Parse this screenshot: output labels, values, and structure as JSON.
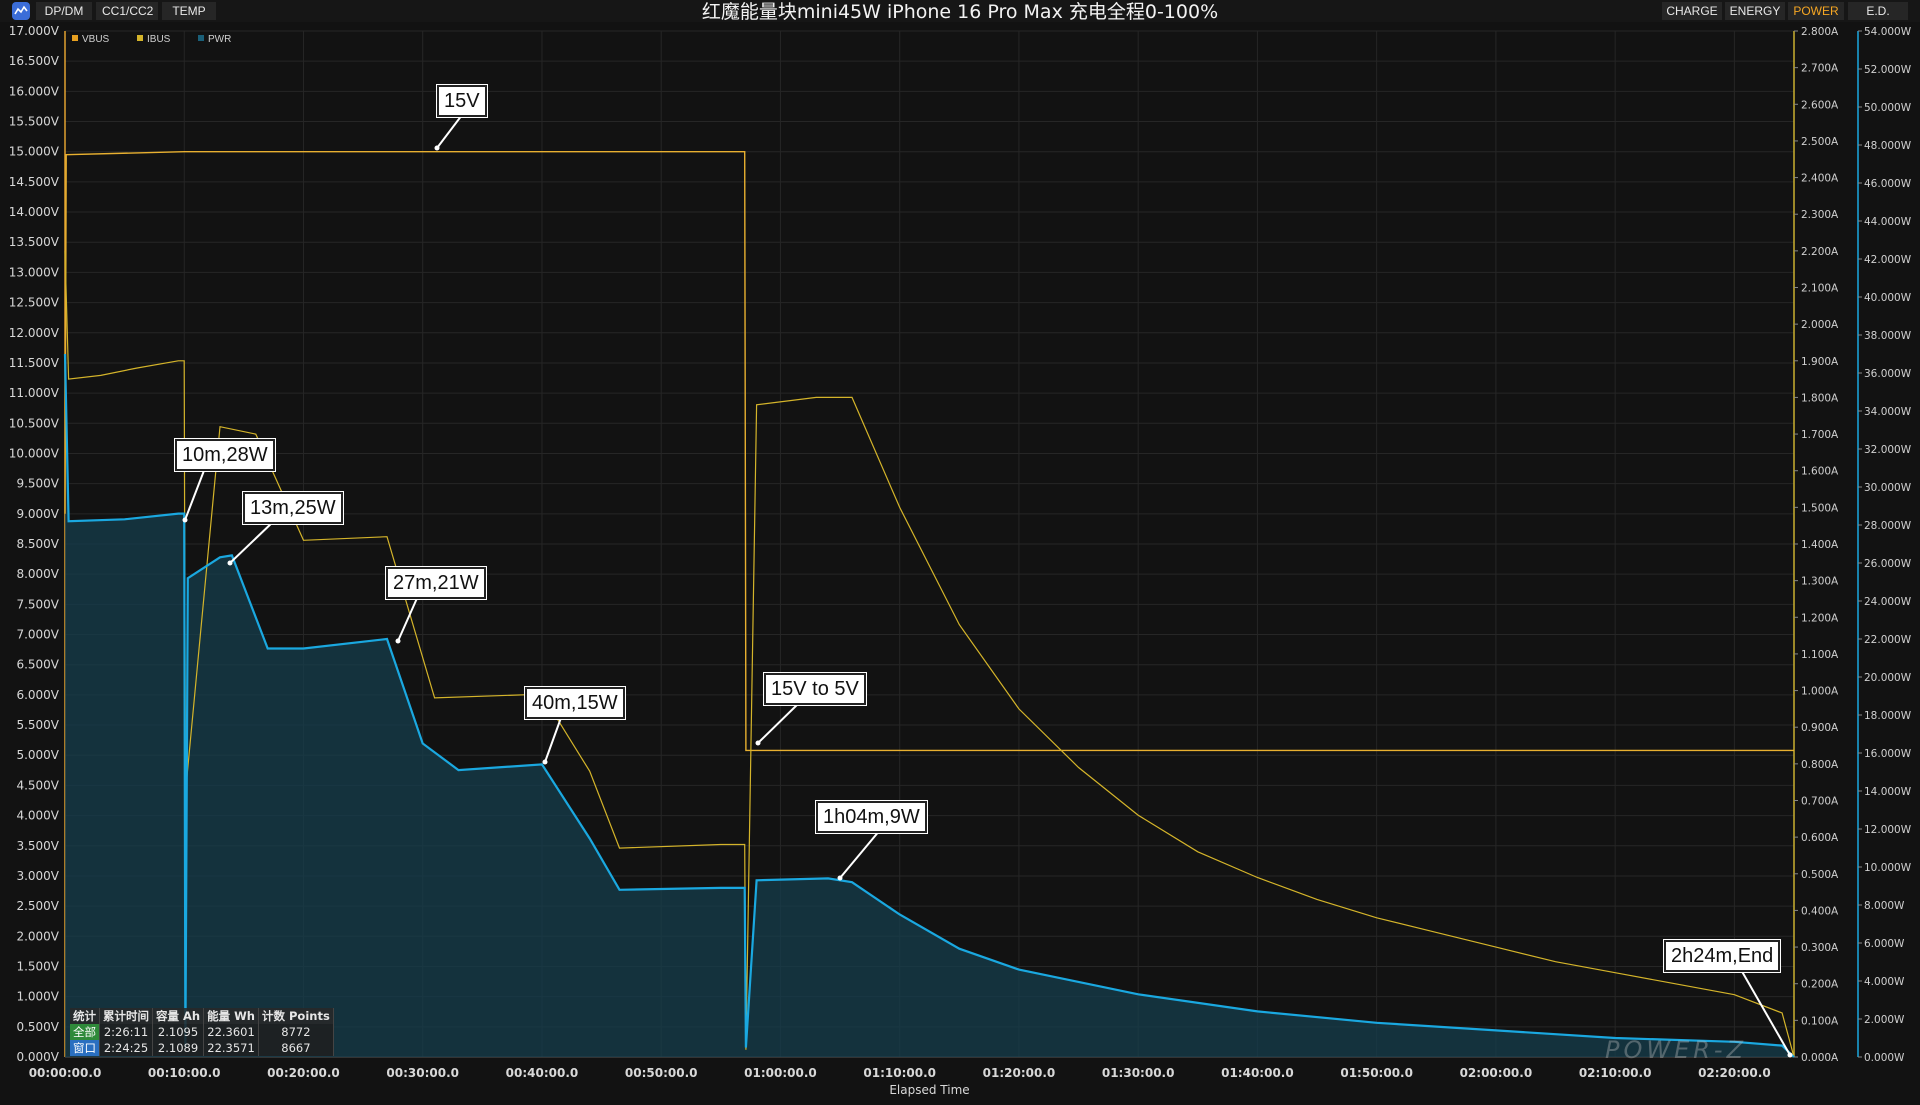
{
  "toolbar": {
    "left_tabs": [
      "DP/DM",
      "CC1/CC2",
      "TEMP"
    ],
    "title": "红魔能量块mini45W iPhone 16 Pro Max 充电全程0-100%",
    "right_tabs": [
      "CHARGE",
      "ENERGY",
      "POWER",
      "E.D."
    ],
    "active_right_tab": "POWER"
  },
  "colors": {
    "vbus": "#e8b030",
    "ibus": "#d4b42a",
    "pwr": "#1aa8e0",
    "pwr_fill": "#153e4c",
    "accent": "#f5a623"
  },
  "legend": [
    "VBUS",
    "IBUS",
    "PWR"
  ],
  "callouts": [
    "15V",
    "10m,28W",
    "13m,25W",
    "27m,21W",
    "40m,15W",
    "15V to 5V",
    "1h04m,9W",
    "2h24m,End"
  ],
  "stats": {
    "headers": [
      "统计",
      "累计时间",
      "容量 Ah",
      "能量 Wh",
      "计数 Points"
    ],
    "rows": [
      [
        "全部",
        "2:26:11",
        "2.1095",
        "22.3601",
        "8772"
      ],
      [
        "窗口",
        "2:24:25",
        "2.1089",
        "22.3571",
        "8667"
      ]
    ]
  },
  "watermark": "POWER-Z",
  "chart_data": {
    "type": "line",
    "xlabel": "Elapsed Time",
    "x_ticks": [
      "00:00:00.0",
      "00:10:00.0",
      "00:20:00.0",
      "00:30:00.0",
      "00:40:00.0",
      "00:50:00.0",
      "01:00:00.0",
      "01:10:00.0",
      "01:20:00.0",
      "01:30:00.0",
      "01:40:00.0",
      "01:50:00.0",
      "02:00:00.0",
      "02:10:00.0",
      "02:20:00.0"
    ],
    "x_range_min": [
      0,
      145
    ],
    "y_left": {
      "label": "VBUS",
      "unit": "V",
      "ylim": [
        0,
        17
      ],
      "ticks": [
        "0.000V",
        "0.500V",
        "1.000V",
        "1.500V",
        "2.000V",
        "2.500V",
        "3.000V",
        "3.500V",
        "4.000V",
        "4.500V",
        "5.000V",
        "5.500V",
        "6.000V",
        "6.500V",
        "7.000V",
        "7.500V",
        "8.000V",
        "8.500V",
        "9.000V",
        "9.500V",
        "10.000V",
        "10.500V",
        "11.000V",
        "11.500V",
        "12.000V",
        "12.500V",
        "13.000V",
        "13.500V",
        "14.000V",
        "14.500V",
        "15.000V",
        "15.500V",
        "16.000V",
        "16.500V",
        "17.000V"
      ]
    },
    "y_right1": {
      "label": "IBUS",
      "unit": "A",
      "ylim": [
        0,
        2.8
      ],
      "ticks": [
        "0.000A",
        "0.100A",
        "0.200A",
        "0.300A",
        "0.400A",
        "0.500A",
        "0.600A",
        "0.700A",
        "0.800A",
        "0.900A",
        "1.000A",
        "1.100A",
        "1.200A",
        "1.300A",
        "1.400A",
        "1.500A",
        "1.600A",
        "1.700A",
        "1.800A",
        "1.900A",
        "2.000A",
        "2.100A",
        "2.200A",
        "2.300A",
        "2.400A",
        "2.500A",
        "2.600A",
        "2.700A",
        "2.800A"
      ]
    },
    "y_right2": {
      "label": "PWR",
      "unit": "W",
      "ylim": [
        0,
        54
      ],
      "ticks": [
        "0.000W",
        "2.000W",
        "4.000W",
        "6.000W",
        "8.000W",
        "10.000W",
        "12.000W",
        "14.000W",
        "16.000W",
        "18.000W",
        "20.000W",
        "22.000W",
        "24.000W",
        "26.000W",
        "28.000W",
        "30.000W",
        "32.000W",
        "34.000W",
        "36.000W",
        "38.000W",
        "40.000W",
        "42.000W",
        "44.000W",
        "46.000W",
        "48.000W",
        "50.000W",
        "52.000W",
        "54.000W"
      ]
    },
    "grid": true,
    "legend_position": "top-left",
    "series": [
      {
        "name": "VBUS",
        "axis": "left",
        "x_min": [
          0,
          0.1,
          10,
          10.1,
          57,
          57.1,
          145
        ],
        "values": [
          9.0,
          14.95,
          15.0,
          15.0,
          15.0,
          5.08,
          5.08
        ]
      },
      {
        "name": "IBUS",
        "axis": "right1",
        "x_min": [
          0,
          0.3,
          3,
          6,
          9.5,
          10,
          10.1,
          13,
          16,
          20,
          27,
          31,
          40,
          44,
          46.5,
          55,
          57,
          57.1,
          58,
          63,
          66,
          70,
          75,
          80,
          85,
          90,
          95,
          100,
          105,
          110,
          115,
          120,
          125,
          130,
          135,
          140,
          144,
          145
        ],
        "values": [
          2.2,
          1.85,
          1.86,
          1.88,
          1.9,
          1.9,
          0.72,
          1.72,
          1.7,
          1.41,
          1.42,
          0.98,
          0.99,
          0.78,
          0.57,
          0.58,
          0.58,
          0.02,
          1.78,
          1.8,
          1.8,
          1.5,
          1.18,
          0.95,
          0.79,
          0.66,
          0.56,
          0.49,
          0.43,
          0.38,
          0.34,
          0.3,
          0.26,
          0.23,
          0.2,
          0.17,
          0.12,
          0.0
        ]
      },
      {
        "name": "PWR",
        "axis": "right2",
        "x_min": [
          0,
          0.3,
          5,
          9.5,
          10,
          10.1,
          10.3,
          13,
          14,
          17,
          20,
          27,
          30,
          33,
          40,
          44,
          46.5,
          55,
          57,
          57.1,
          58,
          64,
          66,
          70,
          75,
          80,
          90,
          100,
          110,
          120,
          130,
          140,
          144,
          145
        ],
        "values": [
          37,
          28.2,
          28.3,
          28.6,
          28.6,
          0.5,
          25.2,
          26.3,
          26.4,
          21.5,
          21.5,
          22.0,
          16.5,
          15.1,
          15.4,
          11.5,
          8.8,
          8.9,
          8.9,
          0.5,
          9.3,
          9.4,
          9.2,
          7.5,
          5.7,
          4.6,
          3.3,
          2.4,
          1.8,
          1.4,
          1.0,
          0.8,
          0.6,
          0.0
        ]
      }
    ]
  }
}
